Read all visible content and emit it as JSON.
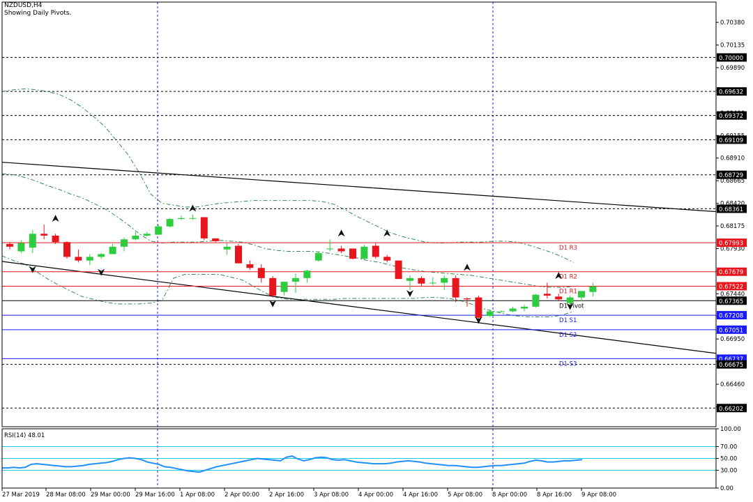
{
  "header": {
    "symbol": "NZDUSD,H4",
    "subtitle": "Showing Daily Pivots."
  },
  "colors": {
    "bull": "#2ecc40",
    "bear": "#e8161c",
    "pivot_res": "#e8161c",
    "pivot_sup": "#1a1aff",
    "bollinger": "#2e8b57",
    "rsi_line": "#1e90ff",
    "rsi_levels": "#1ec8e6",
    "grid_dash": "#000000",
    "vgrid": "#1a1aff",
    "trend": "#000000"
  },
  "chart_data": [
    {
      "type": "candlestick",
      "title": "NZDUSD,H4",
      "ylim": [
        0.66,
        0.706
      ],
      "price_ticks": [
        "0.70380",
        "0.70135",
        "0.69890",
        "0.69645",
        "0.69400",
        "0.69155",
        "0.68910",
        "0.68665",
        "0.68420",
        "0.68175",
        "0.67930",
        "0.67685",
        "0.67440",
        "0.67195",
        "0.66950",
        "0.66705",
        "0.66460",
        "0.66215"
      ],
      "x_labels": [
        "27 Mar 2019",
        "28 Mar 08:00",
        "29 Mar 00:00",
        "29 Mar 16:00",
        "1 Apr 08:00",
        "2 Apr 00:00",
        "2 Apr 16:00",
        "3 Apr 08:00",
        "4 Apr 00:00",
        "4 Apr 16:00",
        "5 Apr 08:00",
        "8 Apr 00:00",
        "8 Apr 16:00",
        "9 Apr 08:00"
      ],
      "highlight_levels": [
        {
          "value": 0.7,
          "label": "0.70000"
        },
        {
          "value": 0.69632,
          "label": "0.69632"
        },
        {
          "value": 0.69372,
          "label": "0.69372"
        },
        {
          "value": 0.69109,
          "label": "0.69109"
        },
        {
          "value": 0.68729,
          "label": "0.68729"
        },
        {
          "value": 0.68361,
          "label": "0.68361"
        },
        {
          "value": 0.67993,
          "label": "0.67993"
        },
        {
          "value": 0.67679,
          "label": "0.67679"
        },
        {
          "value": 0.67522,
          "label": "0.67522"
        },
        {
          "value": 0.67365,
          "label": "0.67365"
        },
        {
          "value": 0.67208,
          "label": "0.67208"
        },
        {
          "value": 0.67051,
          "label": "0.67051"
        },
        {
          "value": 0.66737,
          "label": "0.66737"
        },
        {
          "value": 0.66675,
          "label": "0.66675"
        },
        {
          "value": 0.66202,
          "label": "0.66202"
        }
      ],
      "pivots": [
        {
          "name": "D1 R3",
          "value": 0.67993,
          "kind": "res"
        },
        {
          "name": "D1 R2",
          "value": 0.67679,
          "kind": "res"
        },
        {
          "name": "D1 R1",
          "value": 0.67522,
          "kind": "res"
        },
        {
          "name": "D1 Pivot",
          "value": 0.67365,
          "kind": "piv"
        },
        {
          "name": "D1 S1",
          "value": 0.67208,
          "kind": "sup"
        },
        {
          "name": "D1 S2",
          "value": 0.67051,
          "kind": "sup"
        },
        {
          "name": "D1 S3",
          "value": 0.66737,
          "kind": "sup"
        }
      ],
      "dotted_levels": [
        0.7,
        0.69632,
        0.69372,
        0.69109,
        0.68729,
        0.68361,
        0.66675,
        0.66202
      ],
      "candles": [
        [
          0.6798,
          0.68,
          0.6792,
          0.6795
        ],
        [
          0.679,
          0.6802,
          0.6788,
          0.6799
        ],
        [
          0.6794,
          0.6813,
          0.6788,
          0.6809
        ],
        [
          0.6809,
          0.6819,
          0.6803,
          0.6807
        ],
        [
          0.6807,
          0.6809,
          0.6798,
          0.68
        ],
        [
          0.68,
          0.6801,
          0.6782,
          0.6784
        ],
        [
          0.6784,
          0.6792,
          0.6778,
          0.678
        ],
        [
          0.678,
          0.6787,
          0.6775,
          0.6784
        ],
        [
          0.6784,
          0.6788,
          0.6782,
          0.6787
        ],
        [
          0.6787,
          0.6798,
          0.6787,
          0.6795
        ],
        [
          0.6795,
          0.6805,
          0.679,
          0.6803
        ],
        [
          0.6803,
          0.6811,
          0.6802,
          0.6807
        ],
        [
          0.6807,
          0.6811,
          0.6806,
          0.6809
        ],
        [
          0.6808,
          0.6819,
          0.6808,
          0.6817
        ],
        [
          0.6817,
          0.6826,
          0.6816,
          0.6825
        ],
        [
          0.6825,
          0.6829,
          0.6824,
          0.6826
        ],
        [
          0.6826,
          0.683,
          0.6824,
          0.6826
        ],
        [
          0.6827,
          0.6827,
          0.6802,
          0.6804
        ],
        [
          0.6804,
          0.6804,
          0.68,
          0.6801
        ],
        [
          0.6792,
          0.6799,
          0.6786,
          0.6795
        ],
        [
          0.6796,
          0.6798,
          0.6777,
          0.6777
        ],
        [
          0.6776,
          0.678,
          0.677,
          0.6772
        ],
        [
          0.6772,
          0.6776,
          0.6756,
          0.6761
        ],
        [
          0.6761,
          0.6763,
          0.674,
          0.6742
        ],
        [
          0.6746,
          0.6756,
          0.6742,
          0.6757
        ],
        [
          0.6757,
          0.6766,
          0.6745,
          0.6761
        ],
        [
          0.6761,
          0.677,
          0.6756,
          0.6769
        ],
        [
          0.678,
          0.679,
          0.6779,
          0.6788
        ],
        [
          0.6793,
          0.6803,
          0.679,
          0.6793
        ],
        [
          0.6793,
          0.6796,
          0.6788,
          0.679
        ],
        [
          0.6793,
          0.6793,
          0.6781,
          0.6782
        ],
        [
          0.6782,
          0.6797,
          0.678,
          0.6795
        ],
        [
          0.6796,
          0.6799,
          0.6782,
          0.6784
        ],
        [
          0.6784,
          0.6786,
          0.6778,
          0.678
        ],
        [
          0.678,
          0.678,
          0.676,
          0.676
        ],
        [
          0.6758,
          0.6764,
          0.6748,
          0.6761
        ],
        [
          0.6761,
          0.6763,
          0.6752,
          0.6755
        ],
        [
          0.6756,
          0.6762,
          0.6753,
          0.6756
        ],
        [
          0.6756,
          0.6764,
          0.6748,
          0.6761
        ],
        [
          0.6761,
          0.6764,
          0.6735,
          0.674
        ],
        [
          0.6739,
          0.674,
          0.673,
          0.6738
        ],
        [
          0.674,
          0.6742,
          0.6713,
          0.6718
        ],
        [
          0.672,
          0.6727,
          0.6719,
          0.6725
        ],
        [
          0.6725,
          0.6726,
          0.6724,
          0.6725
        ],
        [
          0.6725,
          0.673,
          0.6724,
          0.6728
        ],
        [
          0.6728,
          0.6732,
          0.6725,
          0.673
        ],
        [
          0.673,
          0.6744,
          0.6729,
          0.6743
        ],
        [
          0.6744,
          0.6756,
          0.6739,
          0.6742
        ],
        [
          0.6741,
          0.6744,
          0.6736,
          0.6738
        ],
        [
          0.6734,
          0.6742,
          0.673,
          0.674
        ],
        [
          0.674,
          0.6747,
          0.6736,
          0.6747
        ],
        [
          0.6746,
          0.6756,
          0.6741,
          0.6752
        ]
      ],
      "upper_band": [
        0.6963,
        0.6965,
        0.6966,
        0.6965,
        0.6963,
        0.696,
        0.6954,
        0.6946,
        0.6936,
        0.6925,
        0.691,
        0.6895,
        0.6875,
        0.6852,
        0.6842,
        0.684,
        0.6838,
        0.6838,
        0.684,
        0.6842,
        0.6843,
        0.6844,
        0.6845,
        0.6845,
        0.6845,
        0.6845,
        0.6845,
        0.6845,
        0.6844,
        0.6841,
        0.6835,
        0.6828,
        0.6822,
        0.6816,
        0.681,
        0.6806,
        0.6803,
        0.68,
        0.6799,
        0.6799,
        0.68,
        0.68,
        0.68,
        0.6801,
        0.6801,
        0.68,
        0.6797,
        0.6793,
        0.6789,
        0.6784,
        0.6778
      ],
      "lower_band": [
        0.6785,
        0.678,
        0.6776,
        0.6768,
        0.676,
        0.6753,
        0.6747,
        0.6741,
        0.6738,
        0.6735,
        0.6733,
        0.6733,
        0.6733,
        0.6734,
        0.6737,
        0.6761,
        0.6765,
        0.6765,
        0.6765,
        0.6765,
        0.6762,
        0.6759,
        0.6752,
        0.6745,
        0.674,
        0.6738,
        0.6738,
        0.6738,
        0.6738,
        0.6738,
        0.6739,
        0.6739,
        0.6739,
        0.6739,
        0.6739,
        0.6739,
        0.6739,
        0.674,
        0.674,
        0.6739,
        0.6737,
        0.6733,
        0.6728,
        0.6725,
        0.6722,
        0.672,
        0.6719,
        0.6719,
        0.6719,
        0.6721,
        0.6725
      ],
      "middle_band": [
        0.6874,
        0.6873,
        0.687,
        0.6866,
        0.6861,
        0.6857,
        0.6852,
        0.6848,
        0.6842,
        0.6836,
        0.6828,
        0.6819,
        0.6809,
        0.6801,
        0.6799,
        0.68,
        0.68,
        0.68,
        0.6801,
        0.6802,
        0.6801,
        0.68,
        0.6797,
        0.6793,
        0.6791,
        0.679,
        0.679,
        0.679,
        0.6789,
        0.6787,
        0.6785,
        0.6783,
        0.678,
        0.6778,
        0.6775,
        0.6772,
        0.677,
        0.6768,
        0.6767,
        0.6766,
        0.6765,
        0.6764,
        0.6762,
        0.676,
        0.6758,
        0.6756,
        0.6754,
        0.6752,
        0.6751,
        0.6751,
        0.6752
      ],
      "fractals_up": [
        [
          4,
          0.6822
        ],
        [
          16,
          0.6833
        ],
        [
          29,
          0.6806
        ],
        [
          33,
          0.6806
        ],
        [
          40,
          0.6769
        ],
        [
          48,
          0.676
        ]
      ],
      "fractals_down": [
        [
          2,
          0.6774
        ],
        [
          8,
          0.6771
        ],
        [
          23,
          0.6737
        ],
        [
          35,
          0.6748
        ],
        [
          41,
          0.6719
        ],
        [
          49,
          0.6734
        ]
      ],
      "trendlines": [
        {
          "from": [
            0,
            0.68865
          ],
          "to": [
            64.5,
            0.6833
          ]
        },
        {
          "from": [
            0,
            0.6779
          ],
          "to": [
            64.5,
            0.66795
          ]
        }
      ]
    },
    {
      "type": "line",
      "title": "RSI(14) 48.01",
      "ylim": [
        0,
        100
      ],
      "ticks": [
        "100.00",
        "70.00",
        "50.00",
        "30.00",
        "0.00"
      ],
      "levels": [
        70,
        50,
        30
      ],
      "values": [
        34,
        34,
        35,
        34,
        35,
        40,
        41,
        40,
        39,
        38,
        37,
        36,
        36,
        37,
        38,
        40,
        41,
        42,
        43,
        45,
        48,
        50,
        51,
        50,
        48,
        44,
        42,
        40,
        36,
        35,
        33,
        31,
        29,
        28,
        27,
        30,
        33,
        36,
        38,
        40,
        42,
        44,
        46,
        48,
        50,
        49,
        48,
        47,
        46,
        52,
        54,
        49,
        46,
        48,
        51,
        52,
        51,
        48,
        47,
        48,
        46,
        44,
        43,
        42,
        41,
        41,
        41,
        42,
        44,
        45,
        46,
        45,
        44,
        42,
        41,
        40,
        39,
        38,
        38,
        37,
        36,
        35,
        35,
        36,
        37,
        38,
        38,
        39,
        40,
        41,
        42,
        45,
        47,
        46,
        44,
        44,
        45,
        46,
        46,
        47,
        48
      ]
    }
  ]
}
